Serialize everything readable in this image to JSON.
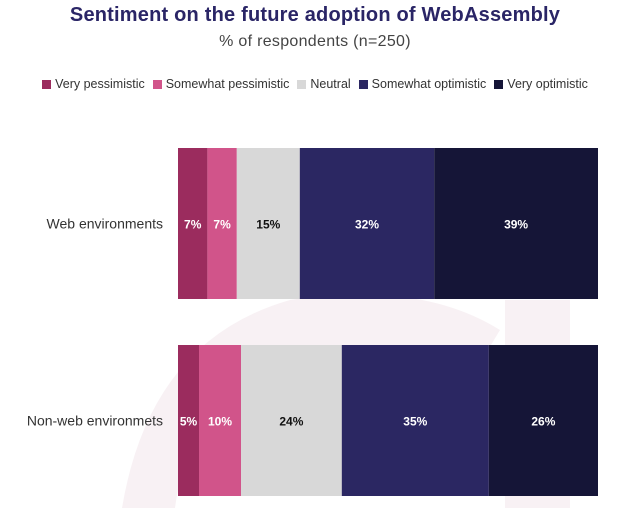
{
  "chart_data": {
    "type": "bar",
    "orientation": "horizontal",
    "stacked": true,
    "normalized_percent": true,
    "title": "Sentiment on the future adoption of WebAssembly",
    "subtitle": "% of respondents (n=250)",
    "xlabel": "",
    "ylabel": "",
    "grid": false,
    "legend_position": "top",
    "categories": [
      "Web environments",
      "Non-web environmets"
    ],
    "series": [
      {
        "name": "Very pessimistic",
        "color": "#9b2c5e",
        "label_color": "#ffffff",
        "values": [
          7,
          5
        ],
        "labels": [
          "7%",
          "5%"
        ]
      },
      {
        "name": "Somewhat pessimistic",
        "color": "#d1548a",
        "label_color": "#ffffff",
        "values": [
          7,
          10
        ],
        "labels": [
          "7%",
          "10%"
        ]
      },
      {
        "name": "Neutral",
        "color": "#d8d8d8",
        "label_color": "#111111",
        "values": [
          15,
          24
        ],
        "labels": [
          "15%",
          "24%"
        ]
      },
      {
        "name": "Somewhat optimistic",
        "color": "#2b2762",
        "label_color": "#ffffff",
        "values": [
          32,
          35
        ],
        "labels": [
          "32%",
          "35%"
        ]
      },
      {
        "name": "Very optimistic",
        "color": "#151537",
        "label_color": "#ffffff",
        "values": [
          39,
          26
        ],
        "labels": [
          "39%",
          "26%"
        ]
      }
    ]
  }
}
